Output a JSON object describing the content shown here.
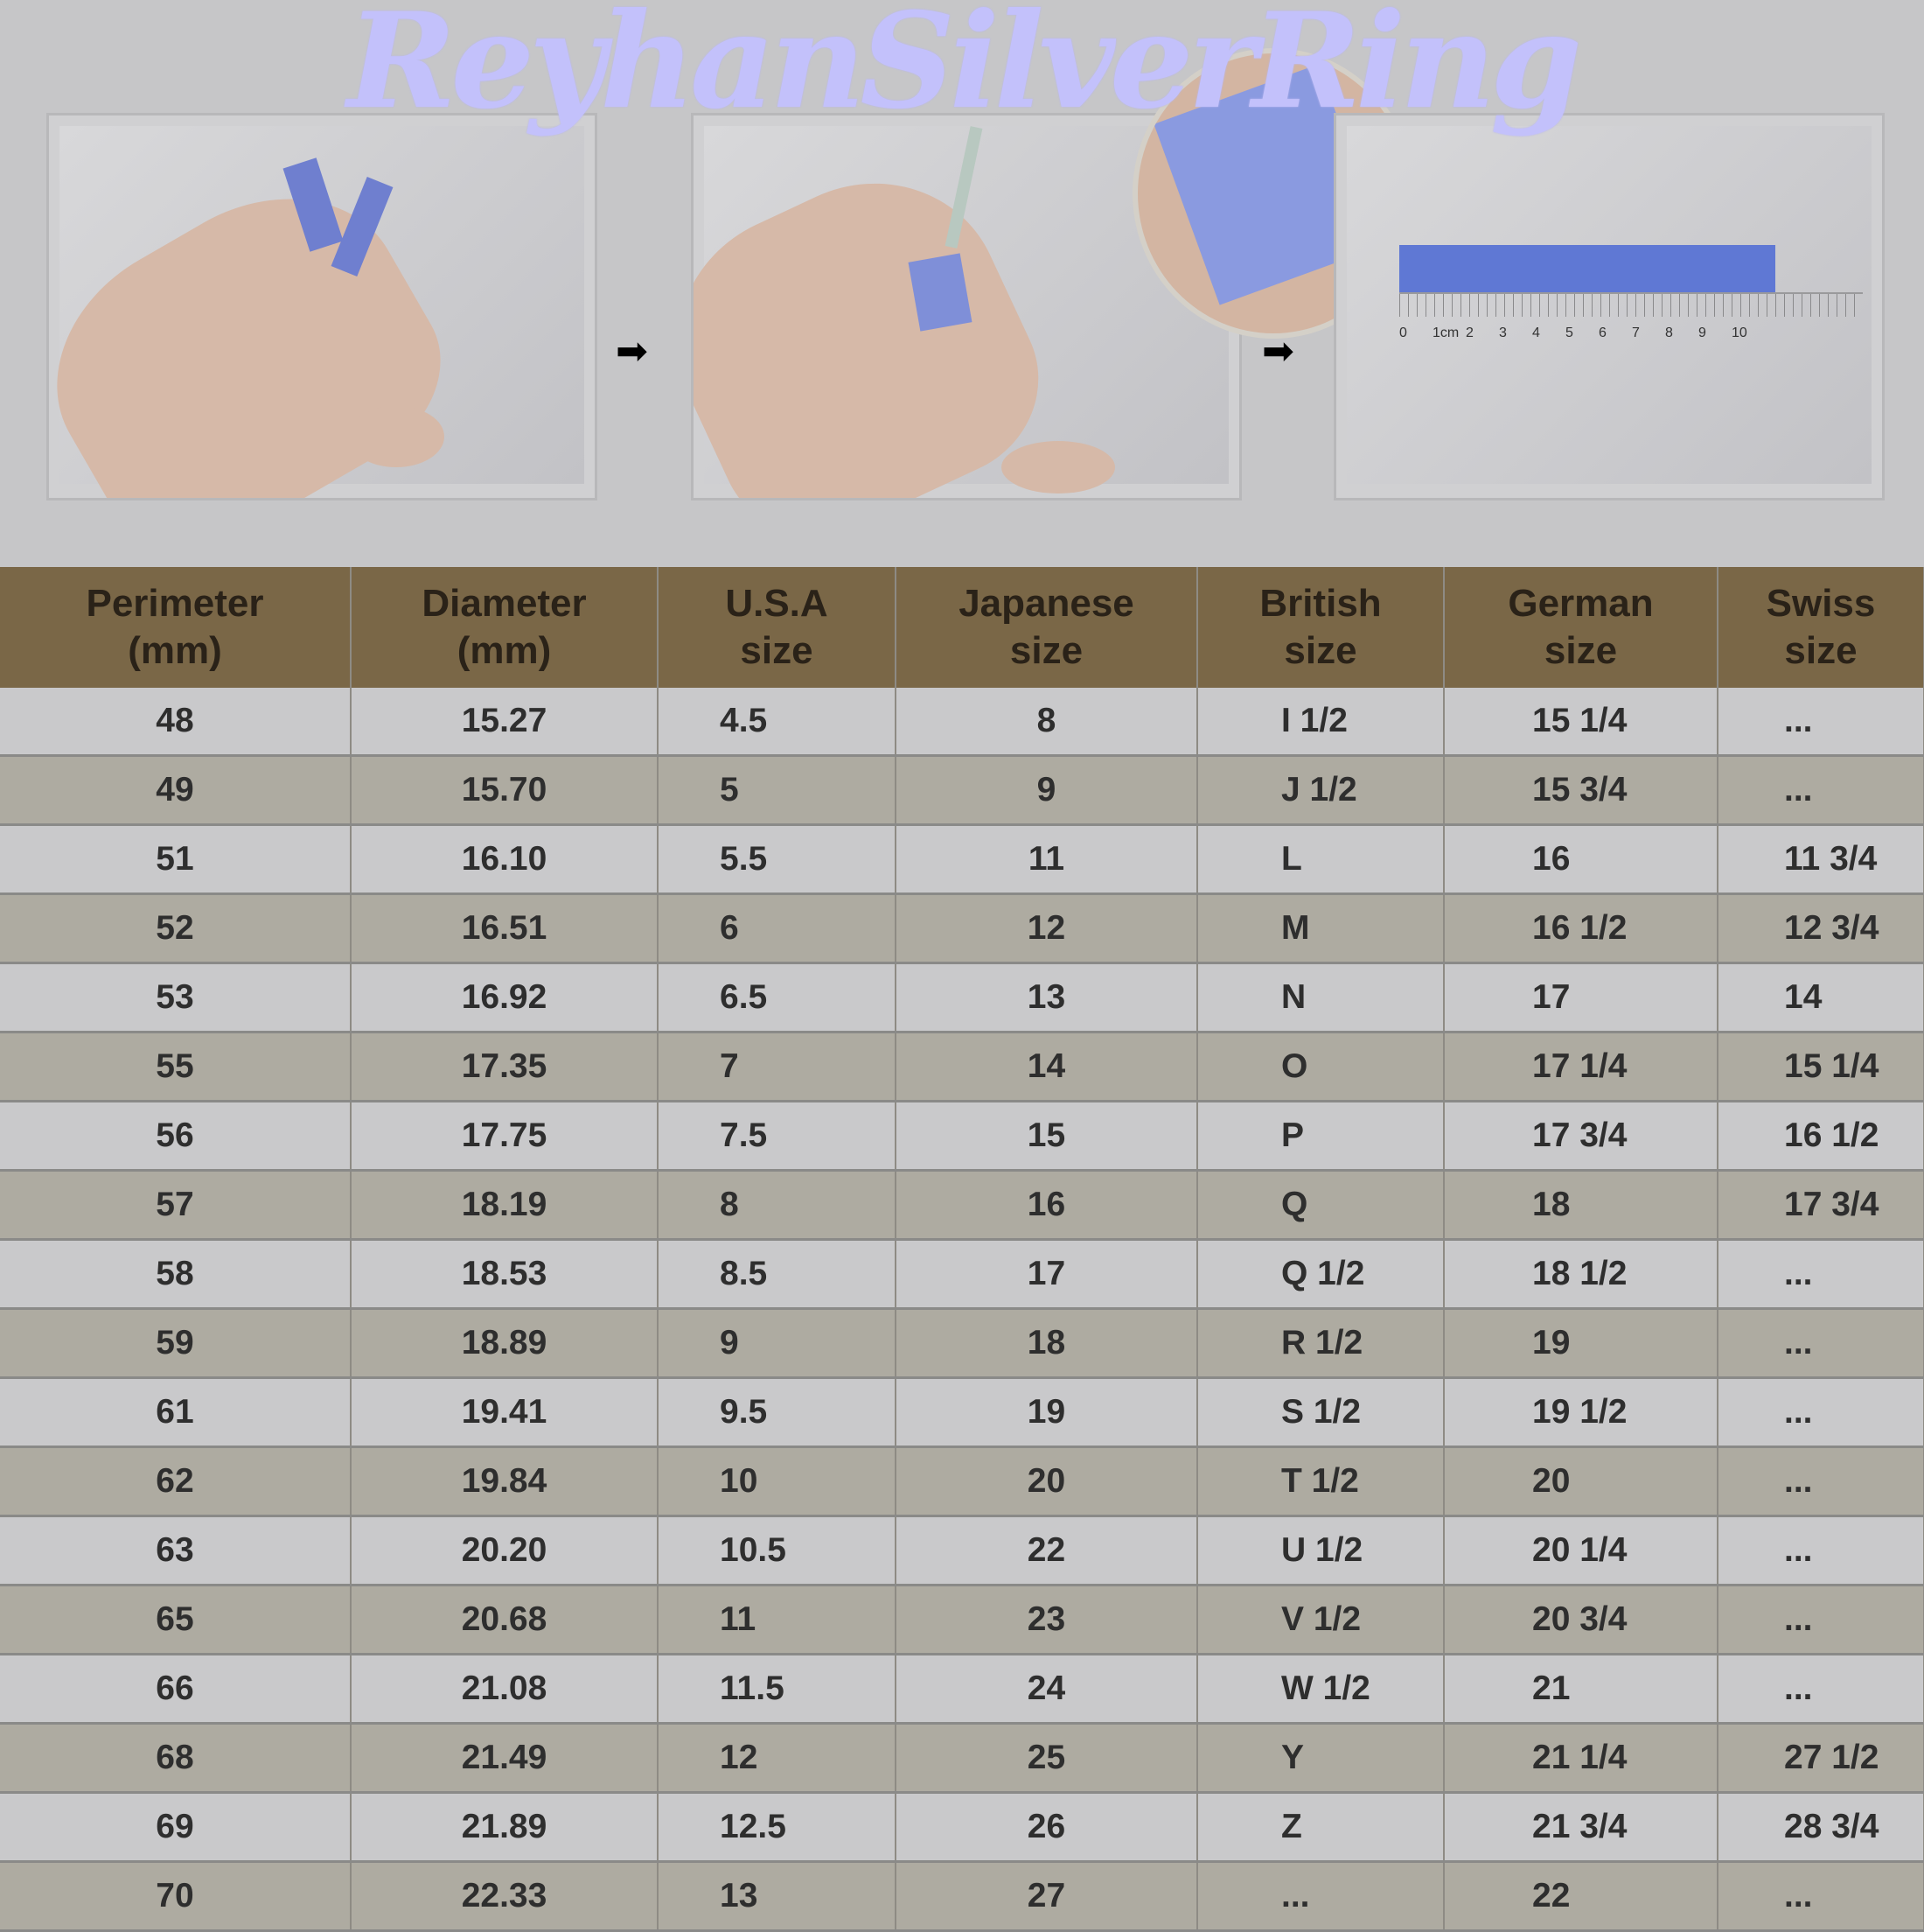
{
  "brand": {
    "title": "ReyhanSilverRing",
    "title_color": "#c3c1fb"
  },
  "instructions": {
    "steps": [
      "wrap-strip-around-finger",
      "mark-overlap-with-pen",
      "measure-strip-on-ruler"
    ],
    "arrow_icon": "right-arrow-icon",
    "ruler_labels": [
      "0",
      "1cm",
      "2",
      "3",
      "4",
      "5",
      "6",
      "7",
      "8",
      "9",
      "10"
    ]
  },
  "table": {
    "header_color": "#7a6747",
    "columns": [
      {
        "line1": "Perimeter",
        "line2": "(mm)"
      },
      {
        "line1": "Diameter",
        "line2": "(mm)"
      },
      {
        "line1": "U.S.A",
        "line2": "size"
      },
      {
        "line1": "Japanese",
        "line2": "size"
      },
      {
        "line1": "British",
        "line2": "size"
      },
      {
        "line1": "German",
        "line2": "size"
      },
      {
        "line1": "Swiss",
        "line2": "size"
      }
    ],
    "rows": [
      [
        "48",
        "15.27",
        "4.5",
        "8",
        "I 1/2",
        "15 1/4",
        "..."
      ],
      [
        "49",
        "15.70",
        "5",
        "9",
        "J 1/2",
        "15 3/4",
        "..."
      ],
      [
        "51",
        "16.10",
        "5.5",
        "11",
        "L",
        "16",
        "11 3/4"
      ],
      [
        "52",
        "16.51",
        "6",
        "12",
        "M",
        "16 1/2",
        "12 3/4"
      ],
      [
        "53",
        "16.92",
        "6.5",
        "13",
        "N",
        "17",
        "14"
      ],
      [
        "55",
        "17.35",
        "7",
        "14",
        "O",
        "17 1/4",
        "15 1/4"
      ],
      [
        "56",
        "17.75",
        "7.5",
        "15",
        "P",
        "17 3/4",
        "16 1/2"
      ],
      [
        "57",
        "18.19",
        "8",
        "16",
        "Q",
        "18",
        "17 3/4"
      ],
      [
        "58",
        "18.53",
        "8.5",
        "17",
        "Q 1/2",
        "18 1/2",
        "..."
      ],
      [
        "59",
        "18.89",
        "9",
        "18",
        "R 1/2",
        "19",
        "..."
      ],
      [
        "61",
        "19.41",
        "9.5",
        "19",
        "S 1/2",
        "19 1/2",
        "..."
      ],
      [
        "62",
        "19.84",
        "10",
        "20",
        "T 1/2",
        "20",
        "..."
      ],
      [
        "63",
        "20.20",
        "10.5",
        "22",
        "U 1/2",
        "20 1/4",
        "..."
      ],
      [
        "65",
        "20.68",
        "11",
        "23",
        "V 1/2",
        "20 3/4",
        "..."
      ],
      [
        "66",
        "21.08",
        "11.5",
        "24",
        "W 1/2",
        "21",
        "..."
      ],
      [
        "68",
        "21.49",
        "12",
        "25",
        "Y",
        "21 1/4",
        "27 1/2"
      ],
      [
        "69",
        "21.89",
        "12.5",
        "26",
        "Z",
        "21 3/4",
        "28 3/4"
      ],
      [
        "70",
        "22.33",
        "13",
        "27",
        "...",
        "22",
        "..."
      ]
    ]
  }
}
